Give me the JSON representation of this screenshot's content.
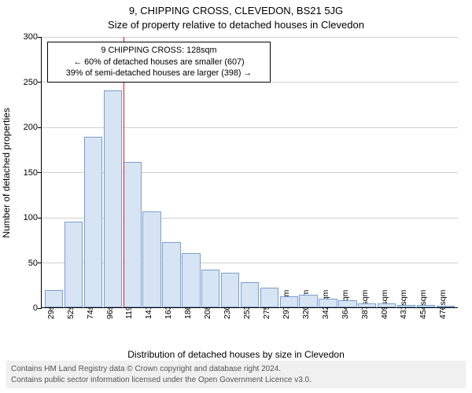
{
  "title": "9, CHIPPING CROSS, CLEVEDON, BS21 5JG",
  "subtitle": "Size of property relative to detached houses in Clevedon",
  "chart": {
    "type": "histogram",
    "background_color": "#ffffff",
    "bar_fill": "#d7e4f4",
    "bar_border": "#7a9fcf",
    "grid_color": "#d0d0d0",
    "reference_line_color": "#d62020",
    "ylabel": "Number of detached properties",
    "xlabel": "Distribution of detached houses by size in Clevedon",
    "ylim_max": 300,
    "ytick_step": 50,
    "yticks": [
      0,
      50,
      100,
      150,
      200,
      250,
      300
    ],
    "x_categories": [
      "29sqm",
      "52sqm",
      "74sqm",
      "96sqm",
      "119sqm",
      "141sqm",
      "163sqm",
      "186sqm",
      "208sqm",
      "230sqm",
      "253sqm",
      "275sqm",
      "297sqm",
      "320sqm",
      "342sqm",
      "364sqm",
      "387sqm",
      "409sqm",
      "431sqm",
      "454sqm",
      "476sqm"
    ],
    "values": [
      19,
      95,
      189,
      240,
      161,
      106,
      72,
      60,
      42,
      38,
      28,
      22,
      12,
      14,
      10,
      8,
      4,
      4,
      3,
      3,
      2
    ],
    "reference_index": 4
  },
  "info_box": {
    "line1": "9 CHIPPING CROSS: 128sqm",
    "line2": "← 60% of detached houses are smaller (607)",
    "line3": "39% of semi-detached houses are larger (398) →"
  },
  "credit": {
    "line1": "Contains HM Land Registry data © Crown copyright and database right 2024.",
    "line2": "Contains public sector information licensed under the Open Government Licence v3.0."
  }
}
